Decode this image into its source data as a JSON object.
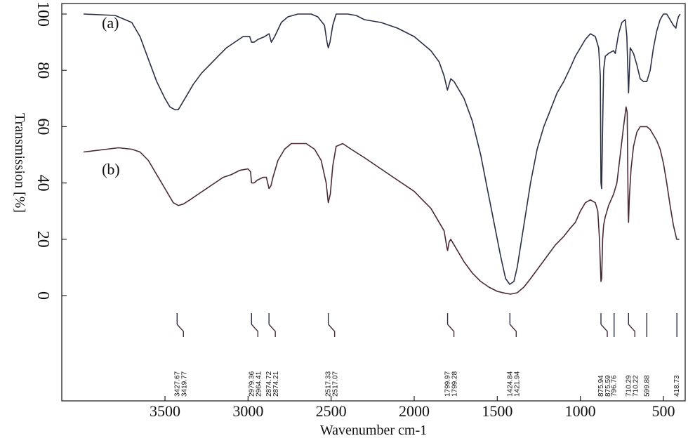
{
  "chart_data": {
    "type": "line",
    "title": "",
    "xlabel": "Wavenumber cm-1",
    "ylabel": "Transmission [%]",
    "x_reversed": true,
    "xlim": [
      4000,
      400
    ],
    "ylim": [
      0,
      100
    ],
    "x_ticks": [
      3500,
      3000,
      2500,
      2000,
      1500,
      1000,
      500
    ],
    "y_ticks": [
      0,
      20,
      40,
      60,
      80,
      100
    ],
    "grid": false,
    "legend": "none",
    "series": [
      {
        "name": "(a)",
        "color": "#2a2f45",
        "points": [
          [
            3990,
            100
          ],
          [
            3800,
            99.5
          ],
          [
            3700,
            97
          ],
          [
            3650,
            92
          ],
          [
            3600,
            84
          ],
          [
            3550,
            76
          ],
          [
            3500,
            70
          ],
          [
            3470,
            67
          ],
          [
            3440,
            66
          ],
          [
            3420,
            66
          ],
          [
            3400,
            68
          ],
          [
            3370,
            71
          ],
          [
            3330,
            75
          ],
          [
            3280,
            79
          ],
          [
            3230,
            82
          ],
          [
            3180,
            85
          ],
          [
            3130,
            88
          ],
          [
            3080,
            90
          ],
          [
            3030,
            92
          ],
          [
            2990,
            92
          ],
          [
            2979,
            90
          ],
          [
            2964,
            90
          ],
          [
            2940,
            91
          ],
          [
            2900,
            92
          ],
          [
            2874,
            93
          ],
          [
            2860,
            90
          ],
          [
            2840,
            92
          ],
          [
            2800,
            97
          ],
          [
            2760,
            99
          ],
          [
            2700,
            100
          ],
          [
            2620,
            100
          ],
          [
            2580,
            99
          ],
          [
            2540,
            96
          ],
          [
            2525,
            90
          ],
          [
            2517,
            88
          ],
          [
            2507,
            90
          ],
          [
            2490,
            96
          ],
          [
            2470,
            100
          ],
          [
            2400,
            100
          ],
          [
            2350,
            99.5
          ],
          [
            2300,
            98
          ],
          [
            2200,
            97
          ],
          [
            2100,
            95
          ],
          [
            2000,
            92
          ],
          [
            1900,
            87
          ],
          [
            1850,
            83
          ],
          [
            1820,
            78
          ],
          [
            1800,
            73
          ],
          [
            1790,
            75
          ],
          [
            1780,
            77
          ],
          [
            1760,
            76
          ],
          [
            1700,
            70
          ],
          [
            1650,
            62
          ],
          [
            1600,
            50
          ],
          [
            1560,
            38
          ],
          [
            1520,
            26
          ],
          [
            1480,
            14
          ],
          [
            1450,
            6
          ],
          [
            1425,
            4
          ],
          [
            1400,
            5
          ],
          [
            1380,
            10
          ],
          [
            1340,
            25
          ],
          [
            1300,
            40
          ],
          [
            1260,
            52
          ],
          [
            1220,
            60
          ],
          [
            1180,
            66
          ],
          [
            1140,
            72
          ],
          [
            1100,
            76
          ],
          [
            1060,
            81
          ],
          [
            1030,
            85
          ],
          [
            1000,
            88
          ],
          [
            970,
            91
          ],
          [
            940,
            93
          ],
          [
            910,
            92
          ],
          [
            890,
            88
          ],
          [
            880,
            78
          ],
          [
            876,
            40
          ],
          [
            872,
            38
          ],
          [
            866,
            60
          ],
          [
            860,
            80
          ],
          [
            850,
            85
          ],
          [
            830,
            86
          ],
          [
            800,
            87
          ],
          [
            790,
            86
          ],
          [
            770,
            93
          ],
          [
            750,
            97
          ],
          [
            730,
            98
          ],
          [
            720,
            92
          ],
          [
            710,
            72
          ],
          [
            705,
            80
          ],
          [
            700,
            88
          ],
          [
            680,
            86
          ],
          [
            660,
            82
          ],
          [
            640,
            77
          ],
          [
            620,
            76
          ],
          [
            600,
            76
          ],
          [
            580,
            80
          ],
          [
            560,
            88
          ],
          [
            540,
            94
          ],
          [
            520,
            98
          ],
          [
            500,
            100
          ],
          [
            480,
            100
          ],
          [
            460,
            98
          ],
          [
            440,
            96
          ],
          [
            425,
            95
          ],
          [
            419,
            97
          ],
          [
            410,
            99
          ],
          [
            400,
            100
          ]
        ]
      },
      {
        "name": "(b)",
        "color": "#4a2a38",
        "points": [
          [
            3990,
            51
          ],
          [
            3850,
            52
          ],
          [
            3780,
            52.5
          ],
          [
            3700,
            52
          ],
          [
            3650,
            51
          ],
          [
            3600,
            48
          ],
          [
            3560,
            44
          ],
          [
            3520,
            40
          ],
          [
            3480,
            36
          ],
          [
            3450,
            33
          ],
          [
            3420,
            32
          ],
          [
            3390,
            32.5
          ],
          [
            3350,
            34
          ],
          [
            3300,
            36
          ],
          [
            3250,
            38
          ],
          [
            3200,
            40
          ],
          [
            3150,
            42
          ],
          [
            3100,
            43
          ],
          [
            3050,
            44.5
          ],
          [
            3000,
            45
          ],
          [
            2985,
            44
          ],
          [
            2979,
            40
          ],
          [
            2964,
            40
          ],
          [
            2945,
            41
          ],
          [
            2910,
            42
          ],
          [
            2890,
            42
          ],
          [
            2874,
            38
          ],
          [
            2862,
            39
          ],
          [
            2850,
            42
          ],
          [
            2820,
            48
          ],
          [
            2780,
            52
          ],
          [
            2740,
            54
          ],
          [
            2700,
            54
          ],
          [
            2650,
            54
          ],
          [
            2600,
            52
          ],
          [
            2560,
            48
          ],
          [
            2530,
            40
          ],
          [
            2517,
            33
          ],
          [
            2505,
            36
          ],
          [
            2490,
            46
          ],
          [
            2470,
            53
          ],
          [
            2430,
            54
          ],
          [
            2380,
            52
          ],
          [
            2300,
            49
          ],
          [
            2200,
            45
          ],
          [
            2100,
            41
          ],
          [
            2000,
            37
          ],
          [
            1950,
            34
          ],
          [
            1900,
            31
          ],
          [
            1850,
            26
          ],
          [
            1820,
            23
          ],
          [
            1803,
            17
          ],
          [
            1799,
            16
          ],
          [
            1790,
            19
          ],
          [
            1780,
            20
          ],
          [
            1760,
            18
          ],
          [
            1700,
            12
          ],
          [
            1650,
            8
          ],
          [
            1600,
            5
          ],
          [
            1550,
            3
          ],
          [
            1500,
            1.5
          ],
          [
            1450,
            0.8
          ],
          [
            1420,
            0.5
          ],
          [
            1380,
            1
          ],
          [
            1340,
            3
          ],
          [
            1300,
            6
          ],
          [
            1250,
            10
          ],
          [
            1200,
            14
          ],
          [
            1150,
            18
          ],
          [
            1100,
            21
          ],
          [
            1060,
            24
          ],
          [
            1030,
            26
          ],
          [
            1000,
            30
          ],
          [
            970,
            33
          ],
          [
            940,
            34
          ],
          [
            910,
            33
          ],
          [
            895,
            30
          ],
          [
            885,
            20
          ],
          [
            876,
            5
          ],
          [
            872,
            6
          ],
          [
            866,
            20
          ],
          [
            860,
            25
          ],
          [
            850,
            28
          ],
          [
            830,
            32
          ],
          [
            800,
            36
          ],
          [
            780,
            40
          ],
          [
            760,
            50
          ],
          [
            740,
            60
          ],
          [
            725,
            67
          ],
          [
            718,
            65
          ],
          [
            712,
            30
          ],
          [
            710,
            26
          ],
          [
            705,
            35
          ],
          [
            695,
            45
          ],
          [
            680,
            53
          ],
          [
            660,
            58
          ],
          [
            640,
            60
          ],
          [
            620,
            60
          ],
          [
            600,
            60
          ],
          [
            580,
            59
          ],
          [
            560,
            57
          ],
          [
            540,
            55
          ],
          [
            520,
            52
          ],
          [
            500,
            47
          ],
          [
            480,
            40
          ],
          [
            460,
            32
          ],
          [
            440,
            25
          ],
          [
            420,
            20
          ],
          [
            405,
            20
          ]
        ]
      }
    ],
    "annotations": [
      {
        "text": "(a)",
        "x": 3880,
        "y": 95
      },
      {
        "text": "(b)",
        "x": 3880,
        "y": 43
      }
    ],
    "peak_markers": [
      {
        "labels": [
          "3427.67",
          "3419.77"
        ],
        "x": 3427
      },
      {
        "labels": [
          "2979.36",
          "2964.41"
        ],
        "x": 2979
      },
      {
        "labels": [
          "2874.72",
          "2874.21"
        ],
        "x": 2874
      },
      {
        "labels": [
          "2517.33",
          "2517.07"
        ],
        "x": 2517
      },
      {
        "labels": [
          "1799.97",
          "1799.28"
        ],
        "x": 1799
      },
      {
        "labels": [
          "1424.84",
          "1421.94"
        ],
        "x": 1424
      },
      {
        "labels": [
          "875.94",
          "875.59"
        ],
        "x": 876
      },
      {
        "labels": [
          "796.76"
        ],
        "x": 797
      },
      {
        "labels": [
          "710.29",
          "710.22"
        ],
        "x": 710
      },
      {
        "labels": [
          "599.88"
        ],
        "x": 600
      },
      {
        "labels": [
          "418.73"
        ],
        "x": 419
      }
    ]
  }
}
